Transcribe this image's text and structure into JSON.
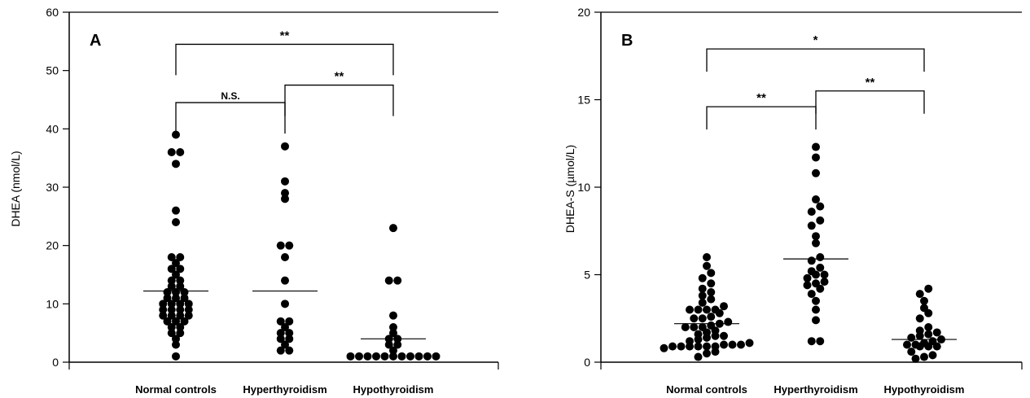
{
  "chart_data": [
    {
      "type": "scatter",
      "panel_label": "A",
      "ylabel": "DHEA (nmol/L)",
      "xlabel": "",
      "ylim": [
        0,
        60
      ],
      "yticks": [
        0,
        10,
        20,
        30,
        40,
        50,
        60
      ],
      "categories": [
        "Normal controls",
        "Hyperthyroidism",
        "Hypothyroidism"
      ],
      "means": [
        12.2,
        12.2,
        4.0
      ],
      "series": [
        {
          "values": [
            39,
            36,
            36,
            34,
            26,
            24,
            18,
            18,
            17,
            16,
            16,
            15,
            14,
            14,
            13,
            13,
            12,
            12,
            12,
            11,
            11,
            11,
            10,
            10,
            10,
            10,
            9,
            9,
            9,
            9,
            8,
            8,
            8,
            8,
            7,
            7,
            7,
            6,
            6,
            5,
            5,
            4,
            3,
            1
          ]
        },
        {
          "values": [
            37,
            31,
            29,
            28,
            20,
            20,
            18,
            14,
            10,
            7,
            7,
            6,
            5,
            5,
            4,
            4,
            3,
            2,
            2
          ]
        },
        {
          "values": [
            23,
            14,
            14,
            8,
            6,
            5,
            4,
            4,
            3,
            3,
            2,
            1,
            1,
            1,
            1,
            1,
            1,
            1,
            1,
            1,
            1,
            1
          ]
        }
      ],
      "comparisons": [
        {
          "from": 0,
          "to": 2,
          "y": 54.5,
          "label": "**"
        },
        {
          "from": 0,
          "to": 1,
          "y": 44.5,
          "label": "N.S."
        },
        {
          "from": 1,
          "to": 2,
          "y": 47.5,
          "label": "**"
        }
      ]
    },
    {
      "type": "scatter",
      "panel_label": "B",
      "ylabel": "DHEA-S (µmol/L)",
      "xlabel": "",
      "ylim": [
        0,
        20
      ],
      "yticks": [
        0,
        5,
        10,
        15,
        20
      ],
      "categories": [
        "Normal controls",
        "Hyperthyroidism",
        "Hypothyroidism"
      ],
      "means": [
        2.2,
        5.9,
        1.3
      ],
      "series": [
        {
          "values": [
            6.0,
            5.5,
            5.1,
            4.8,
            4.5,
            4.2,
            4.0,
            3.8,
            3.6,
            3.4,
            3.2,
            3.0,
            3.0,
            3.0,
            3.0,
            2.8,
            2.6,
            2.5,
            2.5,
            2.3,
            2.2,
            2.1,
            2.0,
            2.0,
            2.0,
            1.8,
            1.7,
            1.6,
            1.5,
            1.5,
            1.4,
            1.3,
            1.2,
            1.1,
            1.0,
            1.0,
            1.0,
            0.9,
            0.9,
            0.9,
            0.9,
            0.9,
            0.9,
            0.8,
            0.6,
            0.5,
            0.3
          ]
        },
        {
          "values": [
            12.3,
            11.7,
            10.8,
            9.3,
            8.9,
            8.6,
            8.1,
            7.8,
            7.2,
            6.8,
            6.0,
            5.8,
            5.4,
            5.2,
            5.0,
            5.0,
            4.8,
            4.6,
            4.5,
            4.4,
            4.2,
            3.9,
            3.5,
            3.0,
            2.4,
            1.2,
            1.2
          ]
        },
        {
          "values": [
            4.2,
            3.9,
            3.5,
            3.1,
            2.8,
            2.5,
            2.0,
            1.8,
            1.7,
            1.6,
            1.5,
            1.4,
            1.3,
            1.2,
            1.1,
            1.0,
            1.0,
            0.9,
            0.9,
            0.9,
            0.6,
            0.4,
            0.3,
            0.2
          ]
        }
      ],
      "comparisons": [
        {
          "from": 0,
          "to": 2,
          "y": 17.9,
          "label": "*"
        },
        {
          "from": 0,
          "to": 1,
          "y": 14.6,
          "label": "**"
        },
        {
          "from": 1,
          "to": 2,
          "y": 15.5,
          "label": "**"
        }
      ]
    }
  ]
}
